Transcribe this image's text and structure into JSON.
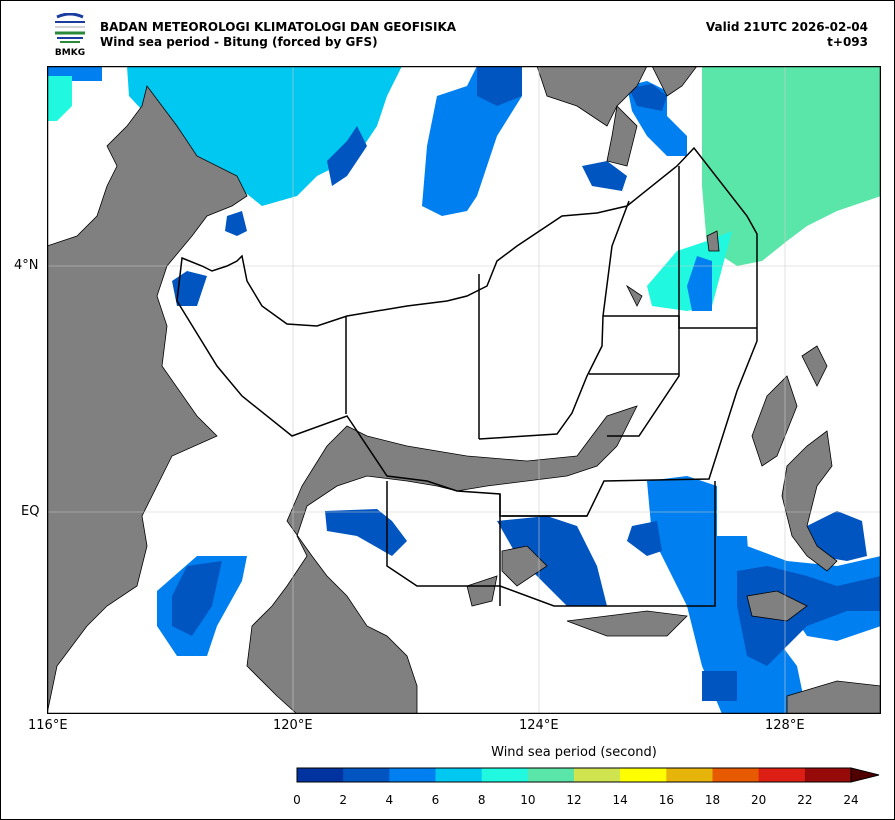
{
  "header": {
    "org": "BADAN METEOROLOGI KLIMATOLOGI DAN GEOFISIKA",
    "title": "Wind sea period - Bitung (forced by GFS)",
    "valid": "Valid 21UTC 2026-02-04",
    "lead": "t+093",
    "logo_text": "BMKG"
  },
  "map": {
    "lon_labels": [
      "116°E",
      "120°E",
      "124°E",
      "128°E"
    ],
    "lat_labels": [
      "4°N",
      "EQ"
    ],
    "land_color": "#808080",
    "ocean_color": "#ffffff"
  },
  "colorbar": {
    "label": "Wind sea period (second)",
    "ticks": [
      "0",
      "2",
      "4",
      "6",
      "8",
      "10",
      "12",
      "14",
      "16",
      "18",
      "20",
      "22",
      "24"
    ],
    "colors": [
      "#0033a0",
      "#0055c0",
      "#0080f0",
      "#00c8f0",
      "#20f8e0",
      "#5ae6a8",
      "#d0e450",
      "#ffff00",
      "#e6b40a",
      "#e85a00",
      "#dc1e14",
      "#960a0a",
      "#500000"
    ],
    "extend": "max"
  }
}
